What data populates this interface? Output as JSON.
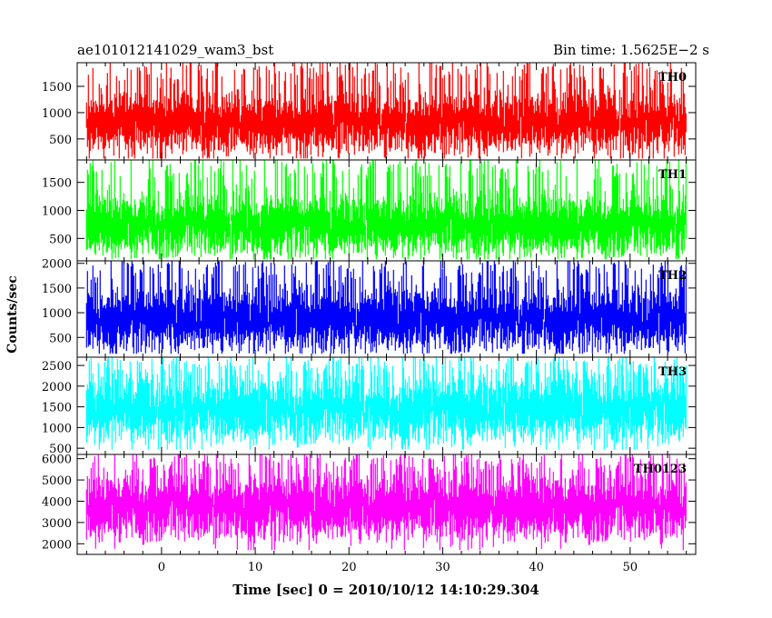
{
  "header": {
    "title": "ae101012141029_wam3_bst",
    "bin_time": "Bin time: 1.5625E−2 s"
  },
  "chart_data": {
    "type": "line",
    "title": "ae101012141029_wam3_bst",
    "xlabel": "Time [sec] 0 = 2010/10/12 14:10:29.304",
    "ylabel": "Counts/sec",
    "xlim": [
      -9,
      57
    ],
    "x_range": [
      -8,
      56
    ],
    "x_ticks": [
      0,
      10,
      20,
      30,
      40,
      50
    ],
    "bin_time_s": 0.015625,
    "grid": false,
    "panels": [
      {
        "name": "TH0",
        "color": "#ff0000",
        "ylim": [
          100,
          1950
        ],
        "y_ticks": [
          500,
          1000,
          1500
        ],
        "mean": 800,
        "typical_min": 150,
        "typical_max": 1500,
        "peak_max": 1950
      },
      {
        "name": "TH1",
        "color": "#00ff00",
        "ylim": [
          100,
          1900
        ],
        "y_ticks": [
          500,
          1000,
          1500
        ],
        "mean": 720,
        "typical_min": 150,
        "typical_max": 1400,
        "peak_max": 1900
      },
      {
        "name": "TH2",
        "color": "#0000ff",
        "ylim": [
          100,
          2050
        ],
        "y_ticks": [
          500,
          1000,
          1500,
          2000
        ],
        "mean": 860,
        "typical_min": 200,
        "typical_max": 1700,
        "peak_max": 2050
      },
      {
        "name": "TH3",
        "color": "#00ffff",
        "ylim": [
          350,
          2700
        ],
        "y_ticks": [
          500,
          1000,
          1500,
          2000,
          2500
        ],
        "mean": 1420,
        "typical_min": 550,
        "typical_max": 2400,
        "peak_max": 2700
      },
      {
        "name": "TH0123",
        "color": "#ff00ff",
        "ylim": [
          1500,
          6200
        ],
        "y_ticks": [
          2000,
          3000,
          4000,
          5000,
          6000
        ],
        "mean": 3700,
        "typical_min": 2000,
        "typical_max": 5600,
        "peak_max": 6200
      }
    ]
  }
}
